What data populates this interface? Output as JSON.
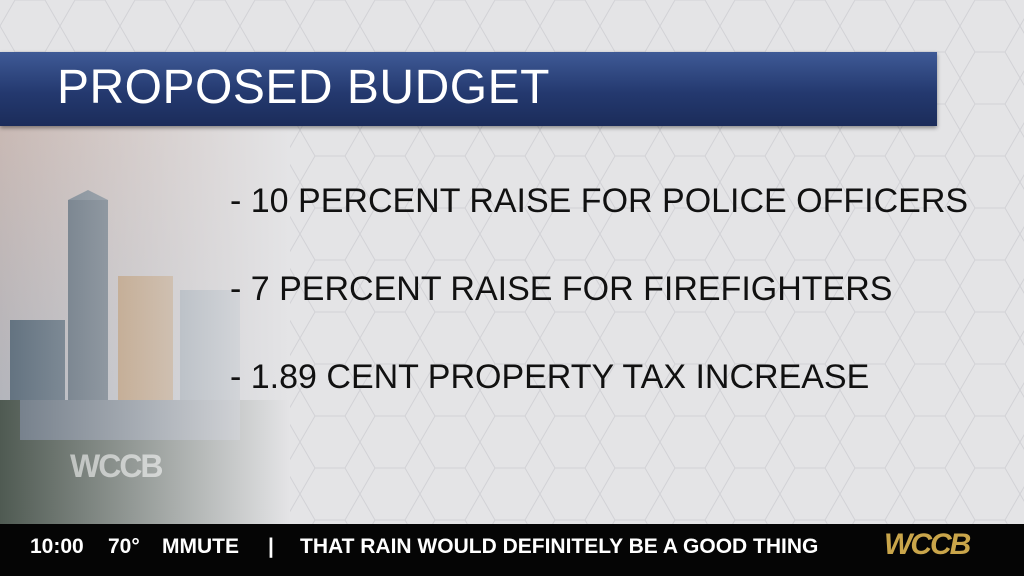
{
  "header": {
    "title": "PROPOSED BUDGET"
  },
  "bullets": [
    "- 10 PERCENT RAISE FOR POLICE OFFICERS",
    "- 7 PERCENT RAISE FOR FIREFIGHTERS",
    "- 1.89 CENT PROPERTY TAX INCREASE"
  ],
  "watermark": "WCCB",
  "ticker": {
    "time": "10:00",
    "temperature": "70°",
    "label": "MMUTE",
    "separator": "|",
    "headline": "THAT RAIN WOULD DEFINITELY BE A GOOD THING",
    "logo": "WCCB"
  }
}
